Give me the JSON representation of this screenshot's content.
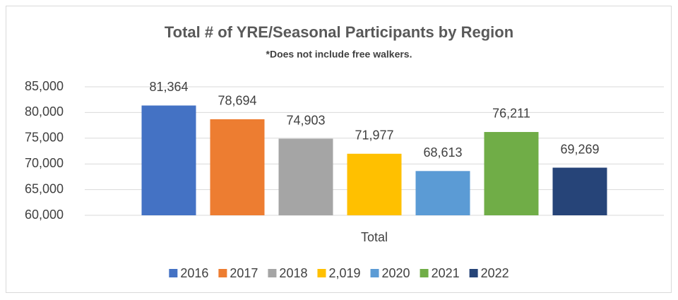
{
  "chart_data": {
    "type": "bar",
    "title": "Total # of YRE/Seasonal Participants by Region",
    "subtitle": "*Does not include free walkers.",
    "categories": [
      "Total"
    ],
    "series": [
      {
        "name": "2016",
        "color": "#4472c4",
        "values": [
          81364
        ],
        "value_labels": [
          "81,364"
        ]
      },
      {
        "name": "2017",
        "color": "#ed7d31",
        "values": [
          78694
        ],
        "value_labels": [
          "78,694"
        ]
      },
      {
        "name": "2018",
        "color": "#a5a5a5",
        "values": [
          74903
        ],
        "value_labels": [
          "74,903"
        ]
      },
      {
        "name": "2,019",
        "color": "#ffc000",
        "values": [
          71977
        ],
        "value_labels": [
          "71,977"
        ]
      },
      {
        "name": "2020",
        "color": "#5b9bd5",
        "values": [
          68613
        ],
        "value_labels": [
          "68,613"
        ]
      },
      {
        "name": "2021",
        "color": "#70ad47",
        "values": [
          76211
        ],
        "value_labels": [
          "76,211"
        ]
      },
      {
        "name": "2022",
        "color": "#264478",
        "values": [
          69269
        ],
        "value_labels": [
          "69,269"
        ]
      }
    ],
    "ylim": [
      60000,
      85000
    ],
    "yticks": [
      {
        "value": 60000,
        "label": "60,000"
      },
      {
        "value": 65000,
        "label": "65,000"
      },
      {
        "value": 70000,
        "label": "70,000"
      },
      {
        "value": 75000,
        "label": "75,000"
      },
      {
        "value": 80000,
        "label": "80,000"
      },
      {
        "value": 85000,
        "label": "85,000"
      }
    ],
    "grid": true,
    "legend": "bottom"
  }
}
